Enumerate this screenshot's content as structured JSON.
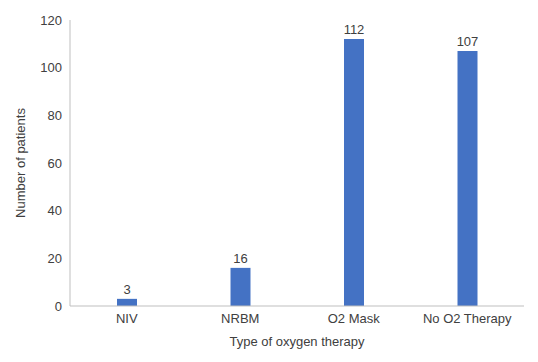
{
  "chart_data": {
    "type": "bar",
    "x_label": "Type of oxygen therapy",
    "y_label": "Number of patients",
    "categories": [
      "NIV",
      "NRBM",
      "O2 Mask",
      "No O2 Therapy"
    ],
    "values": [
      3,
      16,
      112,
      107
    ],
    "color": "#4472c4",
    "ylim": [
      0,
      120
    ],
    "yticks": [
      0,
      20,
      40,
      60,
      80,
      100,
      120
    ],
    "grid": false,
    "data_labels": true
  }
}
